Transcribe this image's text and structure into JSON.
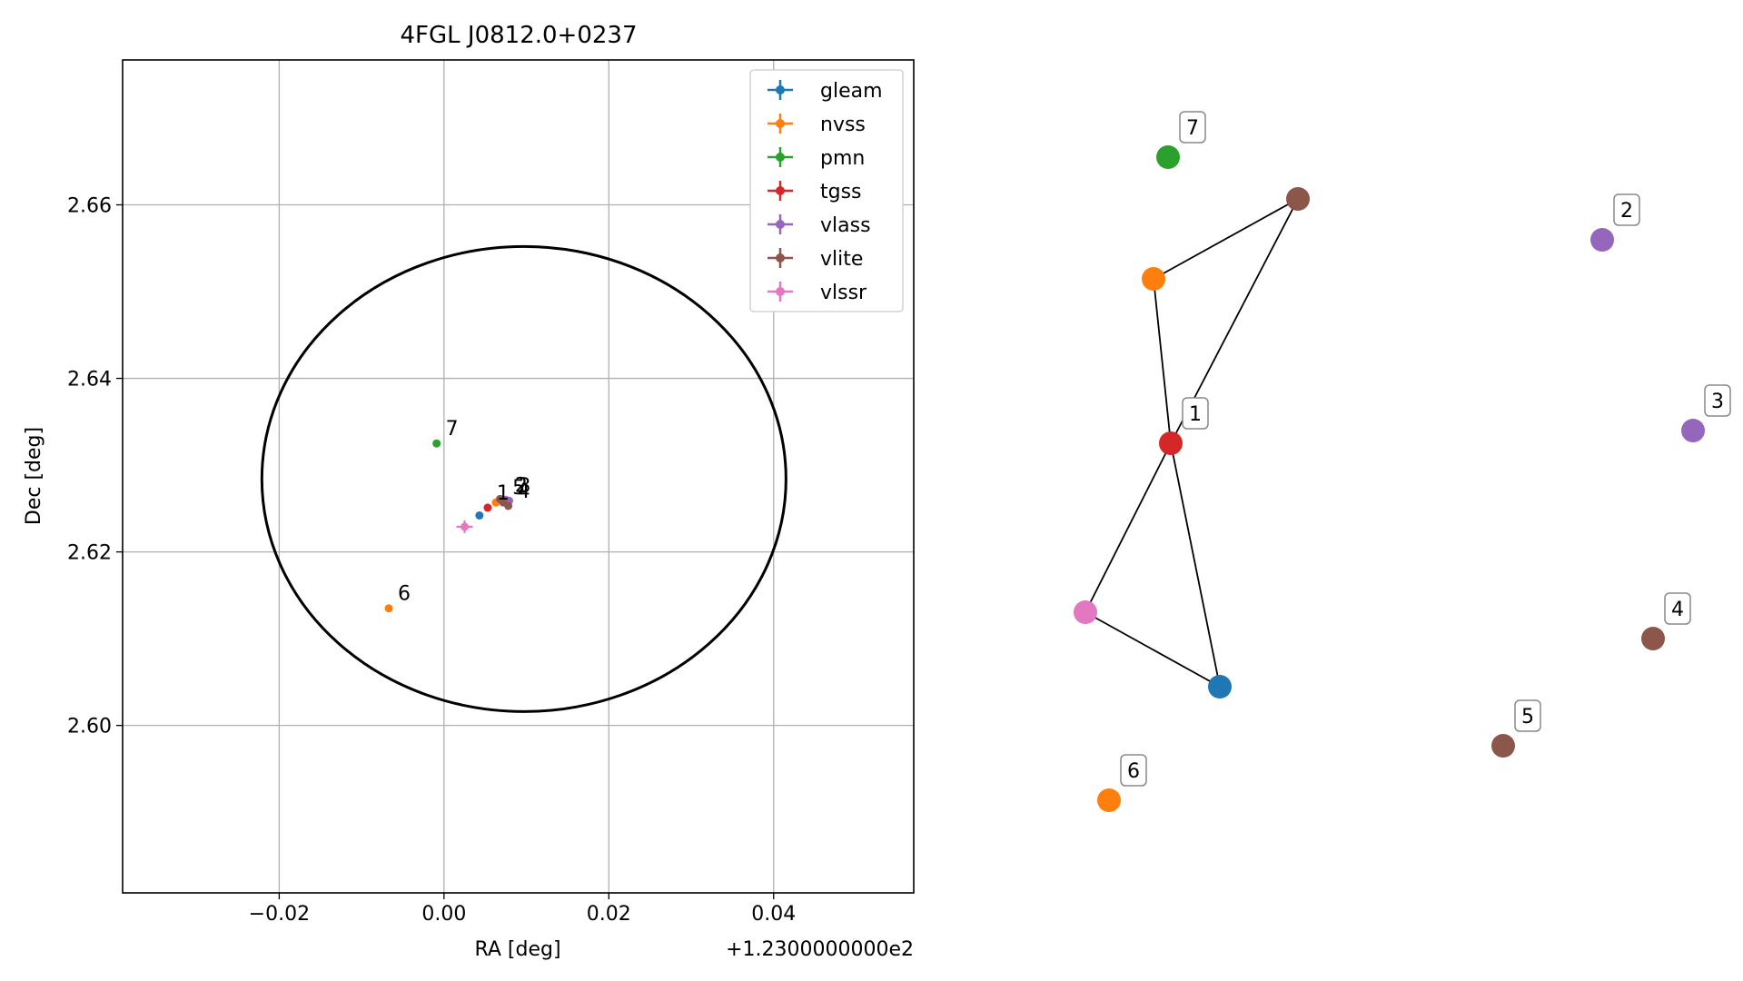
{
  "chart_data": [
    {
      "type": "scatter",
      "title": "4FGL J0812.0+0237",
      "xlabel": "RA [deg]",
      "ylabel": "Dec [deg]",
      "x_offset_label": "+1.2300000000e2",
      "xlim": [
        -0.039,
        0.057
      ],
      "ylim": [
        2.5807,
        2.6767
      ],
      "xticks": [
        -0.02,
        0.0,
        0.02,
        0.04
      ],
      "xtick_labels": [
        "−0.02",
        "0.00",
        "0.02",
        "0.04"
      ],
      "yticks": [
        2.6,
        2.62,
        2.64,
        2.66
      ],
      "ytick_labels": [
        "2.60",
        "2.62",
        "2.64",
        "2.66"
      ],
      "grid": true,
      "legend_position": "top-right",
      "ellipse": {
        "center": [
          0.0097,
          2.6284
        ],
        "semi_axis_x": 0.0318,
        "semi_axis_y": 0.0268,
        "color": "#000000"
      },
      "series": [
        {
          "name": "gleam",
          "color": "#1f77b4",
          "points": [
            {
              "x": 0.0043,
              "y": 2.6242
            }
          ]
        },
        {
          "name": "nvss",
          "color": "#ff7f0e",
          "points": [
            {
              "x": 0.0063,
              "y": 2.6257
            },
            {
              "x": -0.0067,
              "y": 2.6135
            }
          ]
        },
        {
          "name": "pmn",
          "color": "#2ca02c",
          "points": [
            {
              "x": -0.0009,
              "y": 2.6325
            }
          ]
        },
        {
          "name": "tgss",
          "color": "#d62728",
          "points": [
            {
              "x": 0.0053,
              "y": 2.6251
            }
          ]
        },
        {
          "name": "vlass",
          "color": "#9467bd",
          "points": [
            {
              "x": 0.0075,
              "y": 2.626
            },
            {
              "x": 0.0079,
              "y": 2.6259
            }
          ]
        },
        {
          "name": "vlite",
          "color": "#8c564b",
          "points": [
            {
              "x": 0.0068,
              "y": 2.6261
            },
            {
              "x": 0.0078,
              "y": 2.6253
            },
            {
              "x": 0.0072,
              "y": 2.6257
            }
          ]
        },
        {
          "name": "vlssr",
          "color": "#e377c2",
          "points": [
            {
              "x": 0.0025,
              "y": 2.6229
            }
          ]
        }
      ],
      "annotations": [
        {
          "text": "7",
          "x": -0.0009,
          "y": 2.6325
        },
        {
          "text": "1",
          "x": 0.0053,
          "y": 2.6251
        },
        {
          "text": "5",
          "x": 0.0072,
          "y": 2.6257
        },
        {
          "text": "2",
          "x": 0.0075,
          "y": 2.626
        },
        {
          "text": "3",
          "x": 0.0079,
          "y": 2.6259
        },
        {
          "text": "4",
          "x": 0.0078,
          "y": 2.6253
        },
        {
          "text": "6",
          "x": -0.0067,
          "y": 2.6135
        }
      ]
    },
    {
      "type": "network",
      "nodes": [
        {
          "id": "vlite_a",
          "color": "#8c564b"
        },
        {
          "id": "nvss_a",
          "color": "#ff7f0e"
        },
        {
          "id": "tgss",
          "color": "#d62728",
          "label": "1"
        },
        {
          "id": "vlssr",
          "color": "#e377c2"
        },
        {
          "id": "gleam",
          "color": "#1f77b4"
        },
        {
          "id": "pmn",
          "color": "#2ca02c",
          "label": "7"
        },
        {
          "id": "vlass_2",
          "color": "#9467bd",
          "label": "2"
        },
        {
          "id": "vlass_3",
          "color": "#9467bd",
          "label": "3"
        },
        {
          "id": "vlite_4",
          "color": "#8c564b",
          "label": "4"
        },
        {
          "id": "vlite_5",
          "color": "#8c564b",
          "label": "5"
        },
        {
          "id": "nvss_6",
          "color": "#ff7f0e",
          "label": "6"
        }
      ],
      "edges": [
        [
          "nvss_a",
          "vlite_a"
        ],
        [
          "vlite_a",
          "tgss"
        ],
        [
          "nvss_a",
          "tgss"
        ],
        [
          "tgss",
          "vlssr"
        ],
        [
          "tgss",
          "gleam"
        ],
        [
          "vlssr",
          "gleam"
        ]
      ]
    }
  ]
}
